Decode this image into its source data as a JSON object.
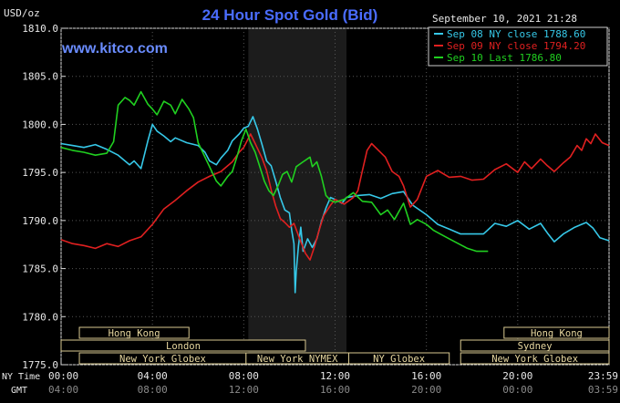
{
  "chart_data": {
    "type": "line",
    "title": "24 Hour Spot Gold (Bid)",
    "unit_label": "USD/oz",
    "site": "www.kitco.com",
    "date_label": "September 10, 2021 21:28",
    "ylim": [
      1775.0,
      1810.0
    ],
    "yticks": [
      "1810.0",
      "1805.0",
      "1800.0",
      "1795.0",
      "1790.0",
      "1785.0",
      "1780.0",
      "1775.0"
    ],
    "xlim": [
      0,
      24
    ],
    "x_row_labels": {
      "ny": "NY Time",
      "gmt": "GMT"
    },
    "xticks_ny": [
      {
        "h": 0,
        "label": "00:00"
      },
      {
        "h": 4,
        "label": "04:00"
      },
      {
        "h": 8,
        "label": "08:00"
      },
      {
        "h": 12,
        "label": "12:00"
      },
      {
        "h": 16,
        "label": "16:00"
      },
      {
        "h": 20,
        "label": "20:00"
      },
      {
        "h": 24,
        "label": "23:59"
      }
    ],
    "xticks_gmt": [
      {
        "h": 0,
        "label": "04:00"
      },
      {
        "h": 4,
        "label": "08:00"
      },
      {
        "h": 8,
        "label": "12:00"
      },
      {
        "h": 12,
        "label": "16:00"
      },
      {
        "h": 16,
        "label": "20:00"
      },
      {
        "h": 20,
        "label": "00:00"
      },
      {
        "h": 24,
        "label": "03:59"
      }
    ],
    "nymex_shade": [
      8.2,
      12.5
    ],
    "sessions": [
      {
        "label": "Hong Kong",
        "start": 0.8,
        "end": 5.6,
        "row": 0
      },
      {
        "label": "Hong Kong",
        "start": 19.4,
        "end": 24.0,
        "row": 0
      },
      {
        "label": "London",
        "start": 0.0,
        "end": 10.7,
        "row": 1
      },
      {
        "label": "Sydney",
        "start": 17.5,
        "end": 24.0,
        "row": 1
      },
      {
        "label": "New York Globex",
        "start": 0.8,
        "end": 8.1,
        "row": 2
      },
      {
        "label": "New York NYMEX",
        "start": 8.1,
        "end": 12.6,
        "row": 2
      },
      {
        "label": "NY Globex",
        "start": 12.6,
        "end": 17.0,
        "row": 2
      },
      {
        "label": "New York Globex",
        "start": 17.5,
        "end": 24.0,
        "row": 2
      }
    ],
    "legend_position": "top-right",
    "series": [
      {
        "name": "Sep 08 NY close 1788.60",
        "color": "#36c8e8",
        "points": [
          [
            0,
            1798
          ],
          [
            0.5,
            1797.8
          ],
          [
            1,
            1797.6
          ],
          [
            1.5,
            1797.9
          ],
          [
            2,
            1797.4
          ],
          [
            2.5,
            1796.8
          ],
          [
            3,
            1795.8
          ],
          [
            3.2,
            1796.2
          ],
          [
            3.5,
            1795.4
          ],
          [
            3.8,
            1798.3
          ],
          [
            4.0,
            1800.0
          ],
          [
            4.2,
            1799.3
          ],
          [
            4.5,
            1798.8
          ],
          [
            4.8,
            1798.2
          ],
          [
            5.0,
            1798.6
          ],
          [
            5.5,
            1798.1
          ],
          [
            6.0,
            1797.8
          ],
          [
            6.3,
            1797.1
          ],
          [
            6.5,
            1796.2
          ],
          [
            6.8,
            1795.8
          ],
          [
            7.0,
            1796.5
          ],
          [
            7.3,
            1797.3
          ],
          [
            7.5,
            1798.3
          ],
          [
            7.8,
            1799.0
          ],
          [
            8.0,
            1799.6
          ],
          [
            8.2,
            1799.8
          ],
          [
            8.4,
            1800.8
          ],
          [
            8.6,
            1799.5
          ],
          [
            8.8,
            1797.9
          ],
          [
            9.0,
            1796.2
          ],
          [
            9.2,
            1795.7
          ],
          [
            9.4,
            1794.1
          ],
          [
            9.6,
            1792.4
          ],
          [
            9.8,
            1791.1
          ],
          [
            10.0,
            1790.8
          ],
          [
            10.1,
            1789.0
          ],
          [
            10.2,
            1787.6
          ],
          [
            10.25,
            1782.5
          ],
          [
            10.3,
            1784.7
          ],
          [
            10.4,
            1787.4
          ],
          [
            10.5,
            1789.3
          ],
          [
            10.6,
            1786.8
          ],
          [
            10.8,
            1788.1
          ],
          [
            11.0,
            1787.2
          ],
          [
            11.2,
            1788.1
          ],
          [
            11.4,
            1789.9
          ],
          [
            11.6,
            1791.3
          ],
          [
            11.8,
            1792.4
          ],
          [
            12.0,
            1792.2
          ],
          [
            12.3,
            1791.8
          ],
          [
            12.5,
            1792.4
          ],
          [
            13.0,
            1792.6
          ],
          [
            13.5,
            1792.7
          ],
          [
            14.0,
            1792.3
          ],
          [
            14.5,
            1792.8
          ],
          [
            15.0,
            1793.0
          ],
          [
            15.4,
            1791.6
          ],
          [
            16.0,
            1790.6
          ],
          [
            16.5,
            1789.6
          ],
          [
            17.0,
            1789.1
          ],
          [
            17.5,
            1788.6
          ],
          [
            18.0,
            1788.6
          ],
          [
            18.5,
            1788.6
          ],
          [
            19.0,
            1789.7
          ],
          [
            19.5,
            1789.4
          ],
          [
            20.0,
            1790.0
          ],
          [
            20.5,
            1789.1
          ],
          [
            21.0,
            1789.7
          ],
          [
            21.3,
            1788.7
          ],
          [
            21.6,
            1787.8
          ],
          [
            22.0,
            1788.6
          ],
          [
            22.5,
            1789.3
          ],
          [
            23.0,
            1789.8
          ],
          [
            23.3,
            1789.2
          ],
          [
            23.6,
            1788.2
          ],
          [
            24.0,
            1787.9
          ]
        ]
      },
      {
        "name": "Sep 09 NY close 1794.20",
        "color": "#e02020",
        "points": [
          [
            0,
            1788
          ],
          [
            0.5,
            1787.6
          ],
          [
            1.0,
            1787.4
          ],
          [
            1.5,
            1787.1
          ],
          [
            2.0,
            1787.6
          ],
          [
            2.5,
            1787.3
          ],
          [
            3.0,
            1787.9
          ],
          [
            3.5,
            1788.3
          ],
          [
            4.0,
            1789.6
          ],
          [
            4.5,
            1791.2
          ],
          [
            5.0,
            1792.1
          ],
          [
            5.5,
            1793.1
          ],
          [
            6.0,
            1794.0
          ],
          [
            6.5,
            1794.6
          ],
          [
            7.0,
            1795.1
          ],
          [
            7.5,
            1796.1
          ],
          [
            7.8,
            1797.1
          ],
          [
            8.0,
            1797.6
          ],
          [
            8.3,
            1799.0
          ],
          [
            8.5,
            1798.0
          ],
          [
            8.8,
            1796.5
          ],
          [
            9.0,
            1795.2
          ],
          [
            9.2,
            1793.2
          ],
          [
            9.4,
            1791.5
          ],
          [
            9.6,
            1790.2
          ],
          [
            9.8,
            1789.8
          ],
          [
            10.0,
            1789.3
          ],
          [
            10.2,
            1789.7
          ],
          [
            10.5,
            1787.8
          ],
          [
            10.7,
            1786.6
          ],
          [
            10.9,
            1785.9
          ],
          [
            11.1,
            1787.3
          ],
          [
            11.3,
            1789.0
          ],
          [
            11.5,
            1790.5
          ],
          [
            11.8,
            1791.6
          ],
          [
            12.0,
            1792.2
          ],
          [
            12.4,
            1791.7
          ],
          [
            12.8,
            1792.4
          ],
          [
            13.0,
            1793.1
          ],
          [
            13.2,
            1795.2
          ],
          [
            13.4,
            1797.3
          ],
          [
            13.6,
            1798.0
          ],
          [
            13.9,
            1797.3
          ],
          [
            14.2,
            1796.6
          ],
          [
            14.5,
            1795.1
          ],
          [
            14.8,
            1794.6
          ],
          [
            15.0,
            1793.6
          ],
          [
            15.3,
            1791.4
          ],
          [
            15.6,
            1792.2
          ],
          [
            16.0,
            1794.6
          ],
          [
            16.5,
            1795.2
          ],
          [
            17.0,
            1794.5
          ],
          [
            17.5,
            1794.6
          ],
          [
            18.0,
            1794.2
          ],
          [
            18.5,
            1794.3
          ],
          [
            19.0,
            1795.3
          ],
          [
            19.5,
            1795.9
          ],
          [
            20.0,
            1795.0
          ],
          [
            20.3,
            1796.1
          ],
          [
            20.6,
            1795.4
          ],
          [
            21.0,
            1796.4
          ],
          [
            21.3,
            1795.7
          ],
          [
            21.6,
            1795.1
          ],
          [
            22.0,
            1796.0
          ],
          [
            22.3,
            1796.6
          ],
          [
            22.6,
            1797.8
          ],
          [
            22.8,
            1797.3
          ],
          [
            23.0,
            1798.5
          ],
          [
            23.2,
            1798.0
          ],
          [
            23.4,
            1799.0
          ],
          [
            23.7,
            1798.1
          ],
          [
            24.0,
            1797.8
          ]
        ]
      },
      {
        "name": "Sep 10 Last 1786.80",
        "color": "#20d020",
        "points": [
          [
            0,
            1797.6
          ],
          [
            0.5,
            1797.3
          ],
          [
            1.0,
            1797.1
          ],
          [
            1.5,
            1796.8
          ],
          [
            2.0,
            1797.0
          ],
          [
            2.3,
            1798.2
          ],
          [
            2.5,
            1802.0
          ],
          [
            2.8,
            1802.8
          ],
          [
            3.0,
            1802.5
          ],
          [
            3.2,
            1802.0
          ],
          [
            3.5,
            1803.4
          ],
          [
            3.8,
            1802.1
          ],
          [
            4.0,
            1801.6
          ],
          [
            4.2,
            1801.0
          ],
          [
            4.5,
            1802.4
          ],
          [
            4.8,
            1802.0
          ],
          [
            5.0,
            1801.1
          ],
          [
            5.3,
            1802.6
          ],
          [
            5.6,
            1801.6
          ],
          [
            5.8,
            1800.7
          ],
          [
            6.0,
            1798.1
          ],
          [
            6.2,
            1797.1
          ],
          [
            6.5,
            1795.6
          ],
          [
            6.8,
            1794.1
          ],
          [
            7.0,
            1793.6
          ],
          [
            7.3,
            1794.6
          ],
          [
            7.5,
            1795.1
          ],
          [
            7.7,
            1796.6
          ],
          [
            7.9,
            1798.3
          ],
          [
            8.1,
            1799.5
          ],
          [
            8.3,
            1798.1
          ],
          [
            8.5,
            1797.1
          ],
          [
            8.7,
            1795.6
          ],
          [
            8.9,
            1794.1
          ],
          [
            9.1,
            1793.1
          ],
          [
            9.3,
            1792.6
          ],
          [
            9.5,
            1793.6
          ],
          [
            9.7,
            1794.8
          ],
          [
            9.9,
            1795.1
          ],
          [
            10.1,
            1794.0
          ],
          [
            10.3,
            1795.6
          ],
          [
            10.6,
            1796.1
          ],
          [
            10.9,
            1796.6
          ],
          [
            11.0,
            1795.6
          ],
          [
            11.2,
            1796.1
          ],
          [
            11.4,
            1794.6
          ],
          [
            11.6,
            1792.6
          ],
          [
            11.8,
            1792.1
          ],
          [
            12.0,
            1791.9
          ],
          [
            12.4,
            1792.2
          ],
          [
            12.8,
            1792.9
          ],
          [
            13.2,
            1792.0
          ],
          [
            13.6,
            1791.9
          ],
          [
            14.0,
            1790.6
          ],
          [
            14.3,
            1791.1
          ],
          [
            14.6,
            1790.1
          ],
          [
            15.0,
            1791.8
          ],
          [
            15.3,
            1789.6
          ],
          [
            15.6,
            1790.1
          ],
          [
            16.0,
            1789.6
          ],
          [
            16.3,
            1789.0
          ],
          [
            16.6,
            1788.6
          ],
          [
            17.0,
            1788.1
          ],
          [
            17.4,
            1787.6
          ],
          [
            17.8,
            1787.1
          ],
          [
            18.2,
            1786.8
          ],
          [
            18.7,
            1786.8
          ]
        ]
      }
    ]
  }
}
